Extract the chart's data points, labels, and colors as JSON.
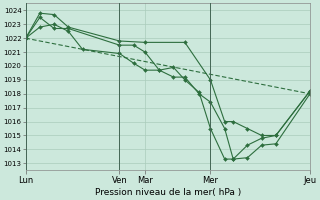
{
  "background_color": "#cce8dc",
  "grid_color": "#aaccbb",
  "line_color": "#2d6e3e",
  "xlabel": "Pression niveau de la mer( hPa )",
  "ylim": [
    1012.5,
    1024.5
  ],
  "yticks": [
    1013,
    1014,
    1015,
    1016,
    1017,
    1018,
    1019,
    1020,
    1021,
    1022,
    1023,
    1024
  ],
  "xlim": [
    0,
    100
  ],
  "xtick_positions": [
    0,
    33,
    42,
    65,
    100
  ],
  "xtick_labels": [
    "Lun",
    "Ven",
    "Mar",
    "Mer",
    "Jeu"
  ],
  "vline_positions": [
    0,
    33,
    65,
    100
  ],
  "line1": {
    "x": [
      0,
      5,
      10,
      15,
      20,
      33,
      38,
      42,
      47,
      52,
      56,
      61,
      65,
      70,
      73,
      78,
      83,
      88,
      100
    ],
    "y": [
      1022.0,
      1022.8,
      1023.0,
      1022.5,
      1021.2,
      1020.9,
      1020.2,
      1019.7,
      1019.7,
      1019.9,
      1019.0,
      1018.1,
      1015.5,
      1013.3,
      1013.3,
      1014.3,
      1014.8,
      1015.0,
      1018.2
    ]
  },
  "line2": {
    "x": [
      0,
      5,
      10,
      15,
      33,
      38,
      42,
      47,
      52,
      56,
      61,
      65,
      70,
      73,
      78,
      83,
      88,
      100
    ],
    "y": [
      1022.0,
      1023.5,
      1022.7,
      1022.7,
      1021.5,
      1021.5,
      1021.0,
      1019.7,
      1019.2,
      1019.2,
      1018.0,
      1017.4,
      1015.5,
      1013.3,
      1013.4,
      1014.3,
      1014.4,
      1018.0
    ]
  },
  "line3": {
    "x": [
      0,
      5,
      10,
      15,
      33,
      42,
      56,
      65,
      70,
      73,
      78,
      83,
      88,
      100
    ],
    "y": [
      1022.0,
      1023.8,
      1023.7,
      1022.8,
      1021.8,
      1021.7,
      1021.7,
      1019.0,
      1016.0,
      1016.0,
      1015.5,
      1015.0,
      1015.0,
      1018.2
    ]
  },
  "line4": {
    "x": [
      0,
      100
    ],
    "y": [
      1022.0,
      1018.0
    ]
  },
  "figsize": [
    3.2,
    2.0
  ],
  "dpi": 100
}
